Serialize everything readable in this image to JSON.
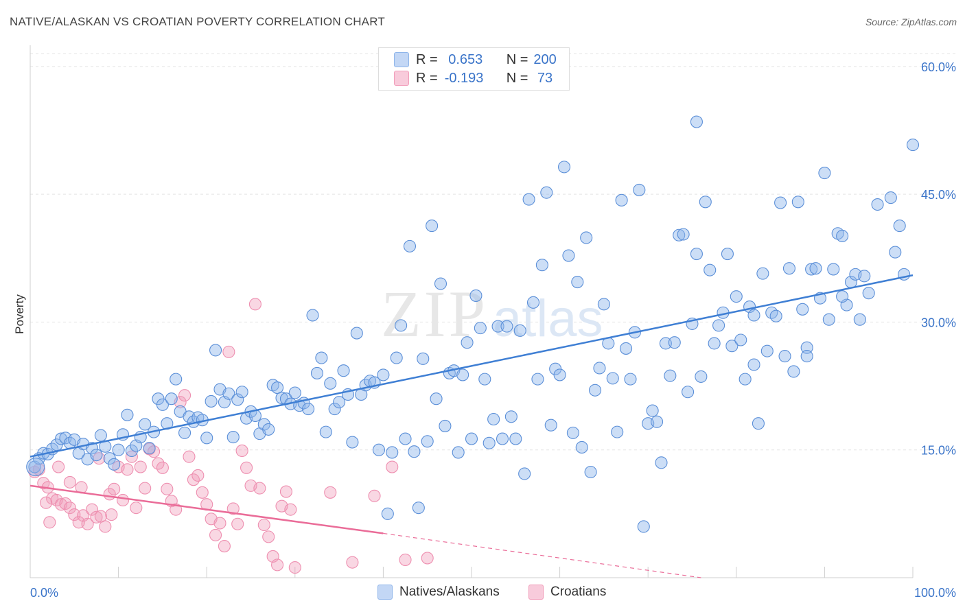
{
  "title": "NATIVE/ALASKAN VS CROATIAN POVERTY CORRELATION CHART",
  "source": "Source: ZipAtlas.com",
  "watermark": {
    "zip": "ZIP",
    "atlas": "atlas"
  },
  "legend": {
    "rows": [
      {
        "r_label": "R =",
        "r_value": " 0.653",
        "n_label": "N =",
        "n_value": "200",
        "color": "#8fb5ea",
        "fill": "#c3d7f5"
      },
      {
        "r_label": "R =",
        "r_value": "-0.193",
        "n_label": "N =",
        "n_value": " 73",
        "color": "#f19cb9",
        "fill": "#f8cbdb"
      }
    ]
  },
  "bottom_legend": {
    "blue": "Natives/Alaskans",
    "pink": "Croatians"
  },
  "chart_data": {
    "type": "scatter",
    "title": "NATIVE/ALASKAN VS CROATIAN POVERTY CORRELATION CHART",
    "xlabel": "",
    "ylabel": "Poverty",
    "xlim": [
      0,
      100
    ],
    "ylim": [
      0,
      62
    ],
    "x_tick_labels": [
      "0.0%",
      "100.0%"
    ],
    "y_ticks": [
      15,
      30,
      45,
      60
    ],
    "y_tick_labels": [
      "15.0%",
      "30.0%",
      "45.0%",
      "60.0%"
    ],
    "grid": "horizontal dashed",
    "colors": {
      "blue": "#3f7fd4",
      "blue_fill": "rgba(143,181,234,0.45)",
      "pink": "#ea6c98",
      "pink_fill": "rgba(241,156,185,0.40)",
      "axis_text": "#3a74c9"
    },
    "series": [
      {
        "name": "Natives/Alaskans",
        "color": "#3f7fd4",
        "trend": [
          [
            0,
            14.2
          ],
          [
            100,
            35.5
          ]
        ],
        "points": [
          [
            0.5,
            13.0
          ],
          [
            1.0,
            14.0
          ],
          [
            1.5,
            14.6
          ],
          [
            2.0,
            14.5
          ],
          [
            2.5,
            15.1
          ],
          [
            3.0,
            15.6
          ],
          [
            3.5,
            16.3
          ],
          [
            4.0,
            16.4
          ],
          [
            4.5,
            15.8
          ],
          [
            5.0,
            16.2
          ],
          [
            5.5,
            14.6
          ],
          [
            6.0,
            15.7
          ],
          [
            6.5,
            13.9
          ],
          [
            7.0,
            15.2
          ],
          [
            7.5,
            14.4
          ],
          [
            8.0,
            16.7
          ],
          [
            8.5,
            15.4
          ],
          [
            9.0,
            14.0
          ],
          [
            9.5,
            13.3
          ],
          [
            10.0,
            15.0
          ],
          [
            10.5,
            16.8
          ],
          [
            11.0,
            19.1
          ],
          [
            11.5,
            14.9
          ],
          [
            12.0,
            15.5
          ],
          [
            12.5,
            16.5
          ],
          [
            13.0,
            18.0
          ],
          [
            13.5,
            15.2
          ],
          [
            14.0,
            17.1
          ],
          [
            14.5,
            21.0
          ],
          [
            15.0,
            20.3
          ],
          [
            15.5,
            18.1
          ],
          [
            16.0,
            21.0
          ],
          [
            16.5,
            23.3
          ],
          [
            17.0,
            19.5
          ],
          [
            17.5,
            17.0
          ],
          [
            18.0,
            18.9
          ],
          [
            18.5,
            18.3
          ],
          [
            19.0,
            18.8
          ],
          [
            19.5,
            18.5
          ],
          [
            20.0,
            16.4
          ],
          [
            20.5,
            20.7
          ],
          [
            21.0,
            26.7
          ],
          [
            21.5,
            22.1
          ],
          [
            22.0,
            20.6
          ],
          [
            22.5,
            21.6
          ],
          [
            23.0,
            16.5
          ],
          [
            23.5,
            20.9
          ],
          [
            24.0,
            21.8
          ],
          [
            24.5,
            18.7
          ],
          [
            25.0,
            19.5
          ],
          [
            25.5,
            19.0
          ],
          [
            26.0,
            16.9
          ],
          [
            26.5,
            18.0
          ],
          [
            27.0,
            17.4
          ],
          [
            27.5,
            22.6
          ],
          [
            28.0,
            22.3
          ],
          [
            28.5,
            21.1
          ],
          [
            29.0,
            21.0
          ],
          [
            29.5,
            20.4
          ],
          [
            30.0,
            21.7
          ],
          [
            30.5,
            20.2
          ],
          [
            31.0,
            20.5
          ],
          [
            31.5,
            19.8
          ],
          [
            32.0,
            30.8
          ],
          [
            32.5,
            24.0
          ],
          [
            33.0,
            25.8
          ],
          [
            33.5,
            17.1
          ],
          [
            34.0,
            22.8
          ],
          [
            34.5,
            19.8
          ],
          [
            35.0,
            20.6
          ],
          [
            35.5,
            24.3
          ],
          [
            36.0,
            21.5
          ],
          [
            36.5,
            15.9
          ],
          [
            37.0,
            28.7
          ],
          [
            37.5,
            21.5
          ],
          [
            38.0,
            22.6
          ],
          [
            38.5,
            23.1
          ],
          [
            39.0,
            22.9
          ],
          [
            39.5,
            15.0
          ],
          [
            40.0,
            23.8
          ],
          [
            40.5,
            7.5
          ],
          [
            41.0,
            14.7
          ],
          [
            41.5,
            25.8
          ],
          [
            42.0,
            29.6
          ],
          [
            42.5,
            16.3
          ],
          [
            43.0,
            38.9
          ],
          [
            43.5,
            14.8
          ],
          [
            44.0,
            8.2
          ],
          [
            44.5,
            25.7
          ],
          [
            45.0,
            16.0
          ],
          [
            45.5,
            41.3
          ],
          [
            46.0,
            21.0
          ],
          [
            46.5,
            34.5
          ],
          [
            47.0,
            17.8
          ],
          [
            47.5,
            24.0
          ],
          [
            48.0,
            24.3
          ],
          [
            48.5,
            14.7
          ],
          [
            49.0,
            23.8
          ],
          [
            49.5,
            27.6
          ],
          [
            50.0,
            16.3
          ],
          [
            50.5,
            33.1
          ],
          [
            51.0,
            29.3
          ],
          [
            51.5,
            23.3
          ],
          [
            52.0,
            15.8
          ],
          [
            52.5,
            18.6
          ],
          [
            53.0,
            29.5
          ],
          [
            53.5,
            16.3
          ],
          [
            54.0,
            29.5
          ],
          [
            54.5,
            18.9
          ],
          [
            55.0,
            16.3
          ],
          [
            55.5,
            29.0
          ],
          [
            56.0,
            12.2
          ],
          [
            56.5,
            44.4
          ],
          [
            57.0,
            32.3
          ],
          [
            57.5,
            23.3
          ],
          [
            58.0,
            36.7
          ],
          [
            58.5,
            45.2
          ],
          [
            59.0,
            17.9
          ],
          [
            59.5,
            24.5
          ],
          [
            60.0,
            23.8
          ],
          [
            60.5,
            48.2
          ],
          [
            61.0,
            37.8
          ],
          [
            61.5,
            17.0
          ],
          [
            62.0,
            34.7
          ],
          [
            62.5,
            15.3
          ],
          [
            63.0,
            39.9
          ],
          [
            63.5,
            12.4
          ],
          [
            64.0,
            22.0
          ],
          [
            64.5,
            24.6
          ],
          [
            65.0,
            32.1
          ],
          [
            65.5,
            27.5
          ],
          [
            66.0,
            23.4
          ],
          [
            66.5,
            17.1
          ],
          [
            67.0,
            44.3
          ],
          [
            67.5,
            26.9
          ],
          [
            68.0,
            23.3
          ],
          [
            68.5,
            28.8
          ],
          [
            69.0,
            45.5
          ],
          [
            69.5,
            6.0
          ],
          [
            70.0,
            18.1
          ],
          [
            70.5,
            19.6
          ],
          [
            71.0,
            18.3
          ],
          [
            71.5,
            13.5
          ],
          [
            72.0,
            27.5
          ],
          [
            72.5,
            23.7
          ],
          [
            73.0,
            27.6
          ],
          [
            73.5,
            40.2
          ],
          [
            74.0,
            40.3
          ],
          [
            74.5,
            21.8
          ],
          [
            75.0,
            29.8
          ],
          [
            75.5,
            38.0
          ],
          [
            76.0,
            23.6
          ],
          [
            76.5,
            44.1
          ],
          [
            77.0,
            36.1
          ],
          [
            77.5,
            27.5
          ],
          [
            78.0,
            29.6
          ],
          [
            78.5,
            31.1
          ],
          [
            79.0,
            38.0
          ],
          [
            79.5,
            27.2
          ],
          [
            80.0,
            33.0
          ],
          [
            80.5,
            27.9
          ],
          [
            81.0,
            23.3
          ],
          [
            81.5,
            31.8
          ],
          [
            82.0,
            30.8
          ],
          [
            82.5,
            18.1
          ],
          [
            83.0,
            35.7
          ],
          [
            83.5,
            26.6
          ],
          [
            84.0,
            31.1
          ],
          [
            84.5,
            30.7
          ],
          [
            85.0,
            44.0
          ],
          [
            85.5,
            26.0
          ],
          [
            86.0,
            36.3
          ],
          [
            86.5,
            24.2
          ],
          [
            87.0,
            44.1
          ],
          [
            87.5,
            31.5
          ],
          [
            88.0,
            27.0
          ],
          [
            88.5,
            36.2
          ],
          [
            89.0,
            36.3
          ],
          [
            89.5,
            32.8
          ],
          [
            90.0,
            47.5
          ],
          [
            90.5,
            30.3
          ],
          [
            91.0,
            36.2
          ],
          [
            91.5,
            40.4
          ],
          [
            92.0,
            40.1
          ],
          [
            92.5,
            32.0
          ],
          [
            93.0,
            34.7
          ],
          [
            93.5,
            35.6
          ],
          [
            94.0,
            30.3
          ],
          [
            94.5,
            35.4
          ],
          [
            95.0,
            33.4
          ],
          [
            75.5,
            53.5
          ],
          [
            100.0,
            50.8
          ],
          [
            97.5,
            44.6
          ],
          [
            98.5,
            41.3
          ],
          [
            98.0,
            38.2
          ],
          [
            99.0,
            35.6
          ],
          [
            96.0,
            43.8
          ],
          [
            92.0,
            33.0
          ],
          [
            88.0,
            26.0
          ],
          [
            82.0,
            25.0
          ]
        ]
      },
      {
        "name": "Croatians",
        "color": "#ea6c98",
        "trend": [
          [
            0,
            10.8
          ],
          [
            40,
            5.2
          ]
        ],
        "trend_dashed": [
          [
            40,
            5.2
          ],
          [
            76,
            0.0
          ]
        ],
        "points": [
          [
            0.5,
            12.4
          ],
          [
            1.0,
            12.7
          ],
          [
            1.5,
            11.1
          ],
          [
            2.0,
            10.6
          ],
          [
            2.5,
            9.3
          ],
          [
            3.0,
            9.1
          ],
          [
            3.5,
            8.6
          ],
          [
            4.0,
            8.7
          ],
          [
            4.5,
            8.2
          ],
          [
            5.0,
            7.4
          ],
          [
            5.5,
            6.5
          ],
          [
            6.0,
            7.3
          ],
          [
            6.5,
            6.3
          ],
          [
            7.0,
            8.0
          ],
          [
            7.5,
            7.1
          ],
          [
            8.0,
            7.2
          ],
          [
            8.5,
            6.0
          ],
          [
            9.0,
            9.8
          ],
          [
            9.5,
            10.4
          ],
          [
            10.0,
            13.0
          ],
          [
            10.5,
            9.1
          ],
          [
            11.0,
            12.7
          ],
          [
            11.5,
            14.2
          ],
          [
            12.0,
            8.2
          ],
          [
            12.5,
            13.0
          ],
          [
            13.0,
            10.5
          ],
          [
            13.5,
            15.1
          ],
          [
            14.0,
            14.8
          ],
          [
            14.5,
            13.4
          ],
          [
            15.0,
            12.9
          ],
          [
            15.5,
            10.4
          ],
          [
            16.0,
            9.0
          ],
          [
            16.5,
            8.0
          ],
          [
            17.0,
            20.6
          ],
          [
            17.5,
            21.4
          ],
          [
            18.0,
            14.2
          ],
          [
            18.5,
            11.5
          ],
          [
            19.0,
            12.0
          ],
          [
            19.5,
            10.0
          ],
          [
            20.0,
            8.6
          ],
          [
            20.5,
            6.9
          ],
          [
            21.0,
            5.0
          ],
          [
            21.5,
            6.4
          ],
          [
            22.0,
            3.7
          ],
          [
            22.5,
            26.5
          ],
          [
            23.0,
            8.1
          ],
          [
            23.5,
            6.3
          ],
          [
            24.0,
            14.9
          ],
          [
            24.5,
            12.9
          ],
          [
            25.0,
            10.8
          ],
          [
            25.5,
            32.1
          ],
          [
            26.0,
            10.5
          ],
          [
            26.5,
            6.2
          ],
          [
            27.0,
            4.8
          ],
          [
            27.5,
            2.5
          ],
          [
            28.0,
            1.5
          ],
          [
            28.5,
            8.4
          ],
          [
            29.0,
            10.1
          ],
          [
            29.5,
            8.0
          ],
          [
            30.0,
            1.2
          ],
          [
            3.2,
            13.0
          ],
          [
            5.8,
            10.6
          ],
          [
            7.8,
            14.0
          ],
          [
            9.2,
            7.4
          ],
          [
            2.2,
            6.5
          ],
          [
            4.5,
            11.2
          ],
          [
            1.8,
            8.8
          ],
          [
            34.0,
            10.0
          ],
          [
            36.5,
            1.8
          ],
          [
            39.0,
            9.6
          ],
          [
            42.5,
            2.1
          ],
          [
            41.0,
            13.0
          ],
          [
            45.0,
            2.3
          ]
        ]
      }
    ]
  }
}
